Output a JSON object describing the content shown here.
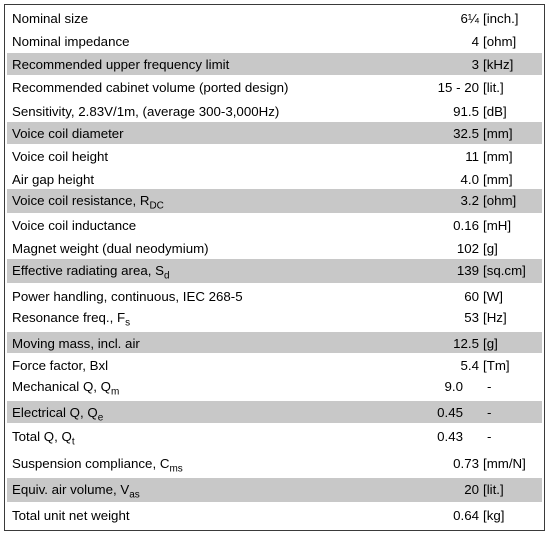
{
  "colors": {
    "shaded_row": "#c8c8c8",
    "border": "#3a3a3a"
  },
  "rows": [
    {
      "param": "Nominal size",
      "value": "6¼",
      "unit": "[inch.]",
      "shaded": false
    },
    {
      "param": "Nominal impedance",
      "value": "4",
      "unit": "[ohm]",
      "shaded": false
    },
    {
      "param": "Recommended upper frequency limit",
      "value": "3",
      "unit": "[kHz]",
      "shaded": true
    },
    {
      "param": "Recommended cabinet volume (ported design)",
      "value": "15 - 20",
      "unit": "[lit.]",
      "shaded": false
    },
    {
      "param": "Sensitivity, 2.83V/1m, (average 300-3,000Hz)",
      "value": "91.5",
      "unit": "[dB]",
      "shaded": false
    },
    {
      "param": "Voice coil diameter",
      "value": "32.5",
      "unit": "[mm]",
      "shaded": true
    },
    {
      "param": "Voice coil height",
      "value": "11",
      "unit": "[mm]",
      "shaded": false
    },
    {
      "param": "Air gap height",
      "value": "4.0",
      "unit": "[mm]",
      "shaded": false
    },
    {
      "param": "Voice coil resistance, R",
      "sub": "DC",
      "value": "3.2",
      "unit": "[ohm]",
      "shaded": true
    },
    {
      "param": "Voice coil inductance",
      "value": "0.16",
      "unit": "[mH]",
      "shaded": false
    },
    {
      "param": "Magnet weight (dual neodymium)",
      "value": "102",
      "unit": "[g]",
      "shaded": false
    },
    {
      "param": "Effective radiating area, S",
      "sub": "d",
      "value": "139",
      "unit": "[sq.cm]",
      "shaded": true
    },
    {
      "param": "Power handling, continuous, IEC 268-5",
      "value": "60",
      "unit": "[W]",
      "shaded": false
    },
    {
      "param": "Resonance freq., F",
      "sub": "s",
      "value": "53",
      "unit": "[Hz]",
      "shaded": false
    },
    {
      "param": "Moving mass, incl. air",
      "value": "12.5",
      "unit": "[g]",
      "shaded": true
    },
    {
      "param": "Force factor, Bxl",
      "value": "5.4",
      "unit": "[Tm]",
      "shaded": false
    },
    {
      "param": "Mechanical Q, Q",
      "sub": "m",
      "value": "9.0",
      "unit": "-",
      "shaded": false
    },
    {
      "param": "Electrical Q, Q",
      "sub": "e",
      "value": "0.45",
      "unit": "-",
      "shaded": true
    },
    {
      "param": "Total Q, Q",
      "sub": "t",
      "value": "0.43",
      "unit": "-",
      "shaded": false
    },
    {
      "param": "Suspension compliance, C",
      "sub": "ms",
      "value": "0.73",
      "unit": "[mm/N]",
      "shaded": false
    },
    {
      "param": "Equiv. air volume, V",
      "sub": "as",
      "value": "20",
      "unit": "[lit.]",
      "shaded": true
    },
    {
      "param": "Total unit net weight",
      "value": "0.64",
      "unit": "[kg]",
      "shaded": false
    }
  ]
}
